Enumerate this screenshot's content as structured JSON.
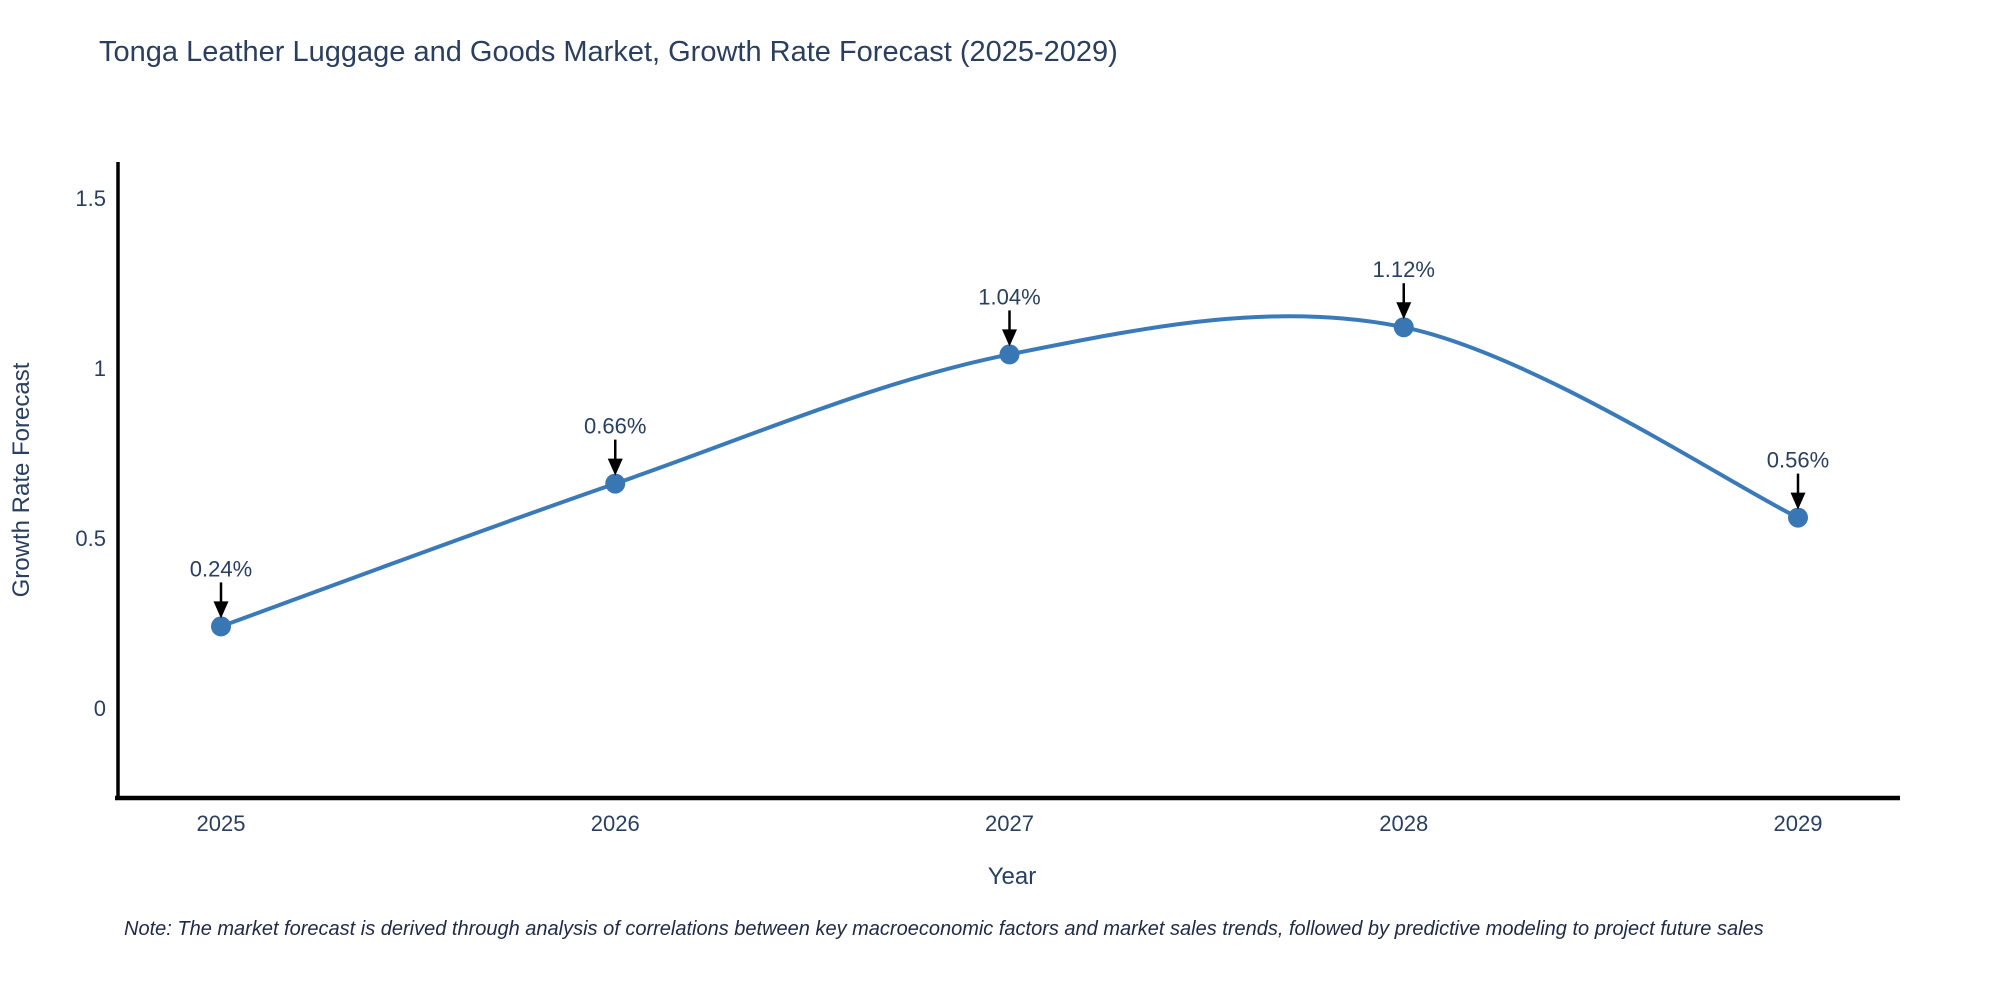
{
  "title": "Tonga Leather Luggage and Goods Market, Growth Rate Forecast (2025-2029)",
  "note": "Note: The market forecast is derived through analysis of correlations between key macroeconomic factors and market sales trends, followed by predictive modeling to project future sales",
  "chart_data": {
    "type": "line",
    "line_shape": "spline",
    "x": [
      2025,
      2026,
      2027,
      2028,
      2029
    ],
    "categories": [
      "2025",
      "2026",
      "2027",
      "2028",
      "2029"
    ],
    "values": [
      0.24,
      0.66,
      1.04,
      1.12,
      0.56
    ],
    "point_labels": [
      "0.24%",
      "0.66%",
      "1.04%",
      "1.12%",
      "0.56%"
    ],
    "title": "Tonga Leather Luggage and Goods Market, Growth Rate Forecast (2025-2029)",
    "xlabel": "Year",
    "ylabel": "Growth Rate Forecast",
    "yticks": [
      0,
      0.5,
      1,
      1.5
    ],
    "ytick_labels": [
      "0",
      "0.5",
      "1",
      "1.5"
    ],
    "ylim": [
      -0.26,
      1.63
    ],
    "grid": false,
    "legend": "none",
    "markers": true,
    "annotations_arrow": true,
    "colors": {
      "line": "#3b7ab8",
      "marker": "#3876b4",
      "axis": "#000000",
      "text": "#2a3f5f",
      "annotation_arrow": "#000000",
      "background": "#ffffff"
    }
  }
}
